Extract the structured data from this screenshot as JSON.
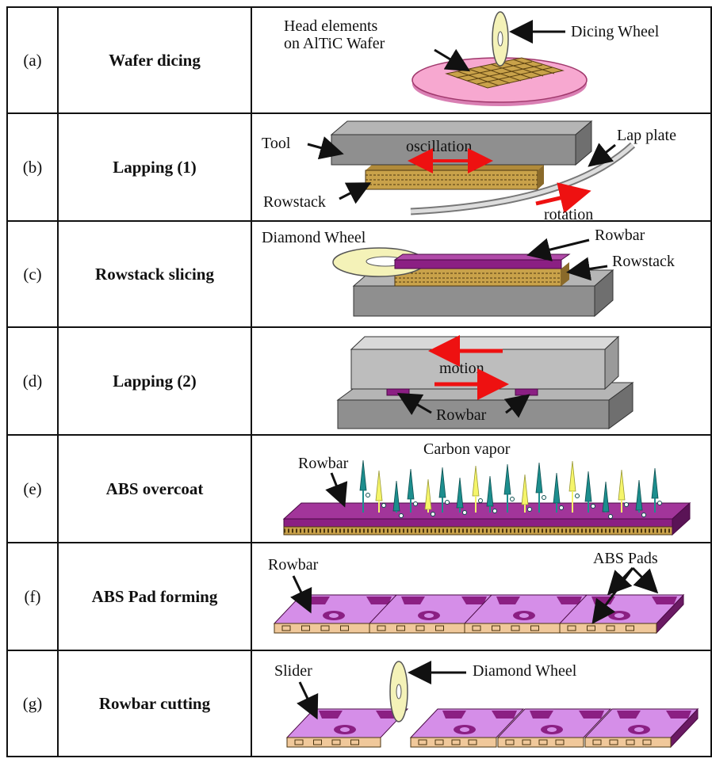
{
  "steps": [
    {
      "label": "(a)",
      "name": "Wafer dicing",
      "callouts": {
        "head_elements_1": "Head elements",
        "head_elements_2": "on AlTiC Wafer",
        "dicing_wheel": "Dicing Wheel"
      }
    },
    {
      "label": "(b)",
      "name": "Lapping (1)",
      "callouts": {
        "tool": "Tool",
        "oscillation": "oscillation",
        "lap_plate": "Lap plate",
        "rowstack": "Rowstack",
        "rotation": "rotation"
      }
    },
    {
      "label": "(c)",
      "name": "Rowstack slicing",
      "callouts": {
        "diamond_wheel": "Diamond Wheel",
        "rowbar": "Rowbar",
        "rowstack": "Rowstack"
      }
    },
    {
      "label": "(d)",
      "name": "Lapping (2)",
      "callouts": {
        "motion": "motion",
        "rowbar": "Rowbar"
      }
    },
    {
      "label": "(e)",
      "name": "ABS overcoat",
      "callouts": {
        "rowbar": "Rowbar",
        "carbon_vapor": "Carbon vapor"
      }
    },
    {
      "label": "(f)",
      "name": "ABS Pad forming",
      "callouts": {
        "rowbar": "Rowbar",
        "abs_pads": "ABS Pads"
      }
    },
    {
      "label": "(g)",
      "name": "Rowbar cutting",
      "callouts": {
        "slider": "Slider",
        "diamond_wheel": "Diamond Wheel"
      }
    }
  ],
  "colors": {
    "border": "#111111",
    "arrow_black": "#111111",
    "arrow_red": "#ee1111",
    "tool_gray_top": "#b5b5b5",
    "tool_gray_front": "#8f8f8f",
    "tool_gray_side": "#6f6f6f",
    "pink_wafer": "#f7a8d0",
    "purple_rowbar": "#8b1f83",
    "light_purple": "#d58ee8",
    "wheel_yellow": "#f4f2b8",
    "rowstack_gold": "#c9a24a",
    "vapor_teal": "#1d8e8e",
    "vapor_yellow": "#f5f56a"
  }
}
